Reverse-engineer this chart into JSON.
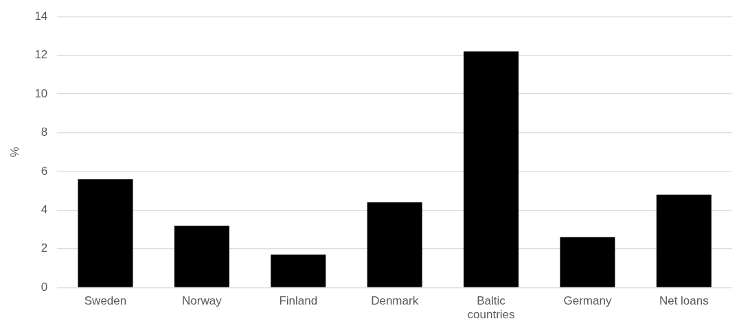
{
  "chart_data": {
    "type": "bar",
    "ylabel": "%",
    "categories": [
      "Sweden",
      "Norway",
      "Finland",
      "Denmark",
      "Baltic countries",
      "Germany",
      "Net loans"
    ],
    "values": [
      5.6,
      3.2,
      1.7,
      4.4,
      12.2,
      2.6,
      4.8
    ],
    "color": "#000000",
    "ylim": [
      0,
      14
    ],
    "yticks": [
      0,
      2,
      4,
      6,
      8,
      10,
      12,
      14
    ],
    "grid": "y",
    "legend": false
  }
}
